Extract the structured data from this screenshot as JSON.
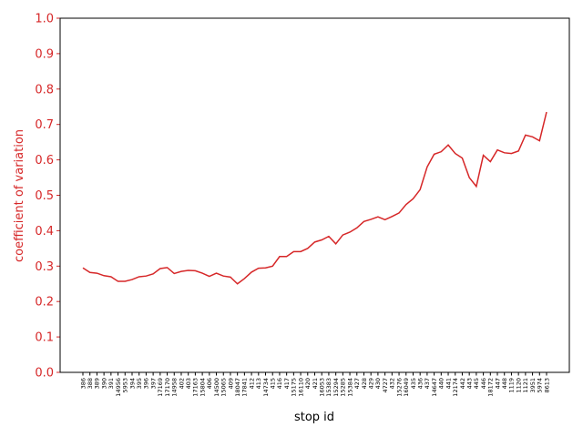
{
  "chart_data": {
    "type": "line",
    "xlabel": "stop id",
    "ylabel": "coefficient of variation",
    "categories": [
      "386",
      "388",
      "389",
      "390",
      "391",
      "14956",
      "5953",
      "394",
      "395",
      "396",
      "397",
      "17169",
      "17170",
      "14958",
      "402",
      "403",
      "17163",
      "15804",
      "406",
      "14500",
      "15065",
      "409",
      "18047",
      "17841",
      "412",
      "413",
      "14734",
      "415",
      "416",
      "417",
      "15175",
      "16110",
      "420",
      "421",
      "16053",
      "15383",
      "15294",
      "15285",
      "15384",
      "427",
      "428",
      "429",
      "430",
      "4727",
      "432",
      "15276",
      "16049",
      "435",
      "436",
      "437",
      "14647",
      "440",
      "441",
      "12174",
      "442",
      "443",
      "445",
      "446",
      "18172",
      "447",
      "448",
      "1119",
      "1120",
      "1121",
      "3951",
      "5974",
      "8613"
    ],
    "series": [
      {
        "name": "coefficient of variation",
        "color": "#d62728",
        "values": [
          0.295,
          0.282,
          0.28,
          0.273,
          0.27,
          0.257,
          0.257,
          0.262,
          0.27,
          0.272,
          0.278,
          0.293,
          0.296,
          0.279,
          0.285,
          0.288,
          0.287,
          0.28,
          0.271,
          0.28,
          0.272,
          0.269,
          0.25,
          0.265,
          0.283,
          0.294,
          0.295,
          0.3,
          0.327,
          0.327,
          0.341,
          0.341,
          0.35,
          0.368,
          0.374,
          0.384,
          0.363,
          0.388,
          0.396,
          0.408,
          0.426,
          0.432,
          0.439,
          0.431,
          0.44,
          0.45,
          0.474,
          0.49,
          0.516,
          0.58,
          0.616,
          0.623,
          0.642,
          0.618,
          0.605,
          0.55,
          0.525,
          0.613,
          0.595,
          0.628,
          0.62,
          0.618,
          0.625,
          0.67,
          0.665,
          0.654,
          0.735
        ]
      }
    ],
    "ylim": [
      0,
      1
    ],
    "yticks": [
      {
        "value": 0,
        "label": "0.0"
      },
      {
        "value": 0.1,
        "label": "0.1"
      },
      {
        "value": 0.2,
        "label": "0.2"
      },
      {
        "value": 0.3,
        "label": "0.3"
      },
      {
        "value": 0.4,
        "label": "0.4"
      },
      {
        "value": 0.5,
        "label": "0.5"
      },
      {
        "value": 0.6,
        "label": "0.6"
      },
      {
        "value": 0.7,
        "label": "0.7"
      },
      {
        "value": 0.8,
        "label": "0.8"
      },
      {
        "value": 0.9,
        "label": "0.9"
      },
      {
        "value": 1,
        "label": "1.0"
      }
    ],
    "tick_color": "#d62728"
  }
}
